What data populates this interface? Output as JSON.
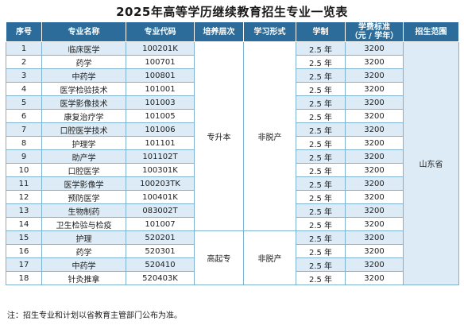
{
  "title": "2025年高等学历继续教育招生专业一览表",
  "headers": {
    "index": "序号",
    "name": "专业名称",
    "code": "专业代码",
    "level": "培养层次",
    "mode": "学习形式",
    "duration": "学制",
    "fee_line1": "学费标准",
    "fee_line2": "（元 / 学年）",
    "region": "招生范围"
  },
  "rows": [
    {
      "index": "1",
      "name": "临床医学",
      "code": "100201K",
      "duration": "2.5 年",
      "fee": "3200"
    },
    {
      "index": "2",
      "name": "药学",
      "code": "100701",
      "duration": "2.5 年",
      "fee": "3200"
    },
    {
      "index": "3",
      "name": "中药学",
      "code": "100801",
      "duration": "2.5 年",
      "fee": "3200"
    },
    {
      "index": "4",
      "name": "医学检验技术",
      "code": "101001",
      "duration": "2.5 年",
      "fee": "3200"
    },
    {
      "index": "5",
      "name": "医学影像技术",
      "code": "101003",
      "duration": "2.5 年",
      "fee": "3200"
    },
    {
      "index": "6",
      "name": "康复治疗学",
      "code": "101005",
      "duration": "2.5 年",
      "fee": "3200"
    },
    {
      "index": "7",
      "name": "口腔医学技术",
      "code": "101006",
      "duration": "2.5 年",
      "fee": "3200"
    },
    {
      "index": "8",
      "name": "护理学",
      "code": "101101",
      "duration": "2.5 年",
      "fee": "3200"
    },
    {
      "index": "9",
      "name": "助产学",
      "code": "101102T",
      "duration": "2.5 年",
      "fee": "3200"
    },
    {
      "index": "10",
      "name": "口腔医学",
      "code": "100301K",
      "duration": "2.5 年",
      "fee": "3200"
    },
    {
      "index": "11",
      "name": "医学影像学",
      "code": "100203TK",
      "duration": "2.5 年",
      "fee": "3200"
    },
    {
      "index": "12",
      "name": "预防医学",
      "code": "100401K",
      "duration": "2.5 年",
      "fee": "3200"
    },
    {
      "index": "13",
      "name": "生物制药",
      "code": "083002T",
      "duration": "2.5 年",
      "fee": "3200"
    },
    {
      "index": "14",
      "name": "卫生检验与检疫",
      "code": "101007",
      "duration": "2.5 年",
      "fee": "3200"
    },
    {
      "index": "15",
      "name": "护理",
      "code": "520201",
      "duration": "2.5 年",
      "fee": "3200"
    },
    {
      "index": "16",
      "name": "药学",
      "code": "520301",
      "duration": "2.5 年",
      "fee": "3200"
    },
    {
      "index": "17",
      "name": "中药学",
      "code": "520410",
      "duration": "2.5 年",
      "fee": "3200"
    },
    {
      "index": "18",
      "name": "针灸推拿",
      "code": "520403K",
      "duration": "2.5 年",
      "fee": "3200"
    }
  ],
  "groups": [
    {
      "level": "专升本",
      "mode": "非脱产"
    },
    {
      "level": "高起专",
      "mode": "非脱产"
    }
  ],
  "region": "山东省",
  "colors": {
    "header_bg": "#2b6c9a",
    "stripe": "#dcebf6",
    "border": "#7fb2cf"
  },
  "note": "注：招生专业和计划以省教育主管部门公布为准。"
}
